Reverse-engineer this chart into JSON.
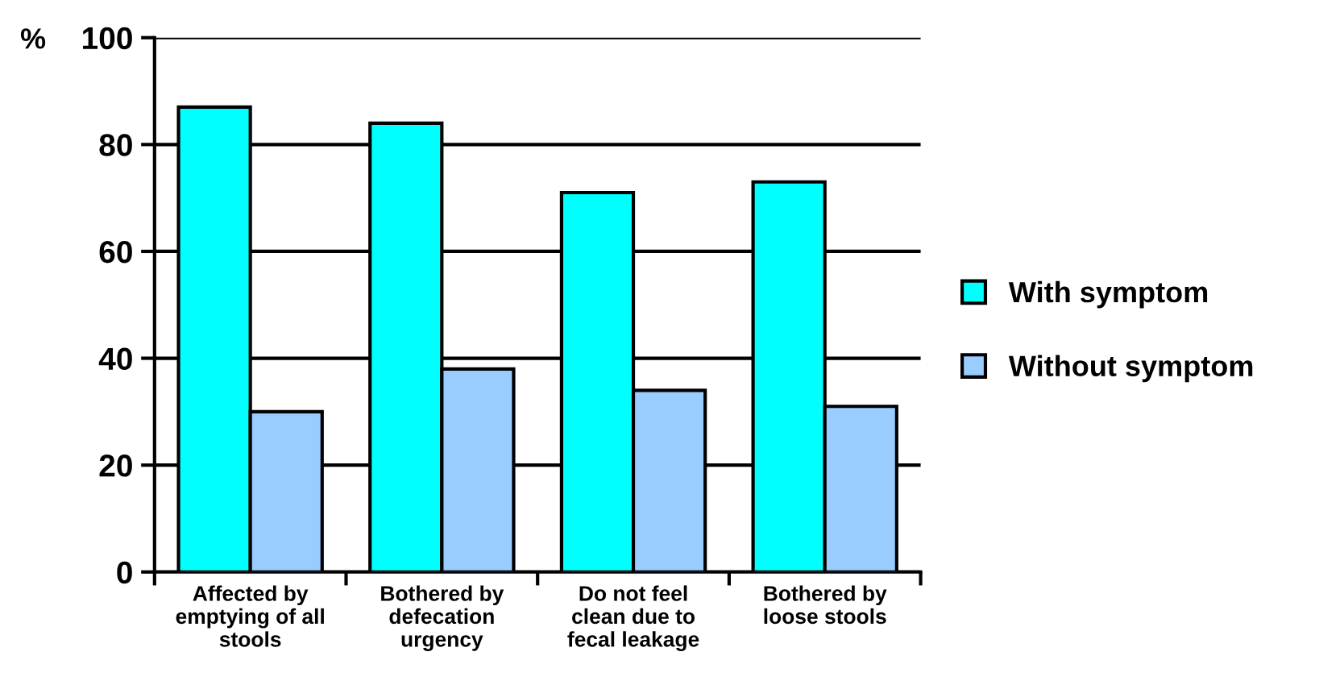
{
  "chart_data": {
    "type": "bar",
    "ylabel": "%",
    "categories": [
      "Affected by\nemptying of all\nstools",
      "Bothered by\ndefecation\nurgency",
      "Do not feel\nclean due to\nfecal leakage",
      "Bothered by\nloose stools"
    ],
    "series": [
      {
        "name": "With symptom",
        "color": "#00ffff",
        "values": [
          87,
          84,
          71,
          73
        ]
      },
      {
        "name": "Without symptom",
        "color": "#99ccff",
        "values": [
          30,
          38,
          34,
          31
        ]
      }
    ],
    "ylim": [
      0,
      100
    ],
    "yticks": [
      0,
      20,
      40,
      60,
      80,
      100
    ],
    "grid": "y",
    "legend": "right"
  }
}
